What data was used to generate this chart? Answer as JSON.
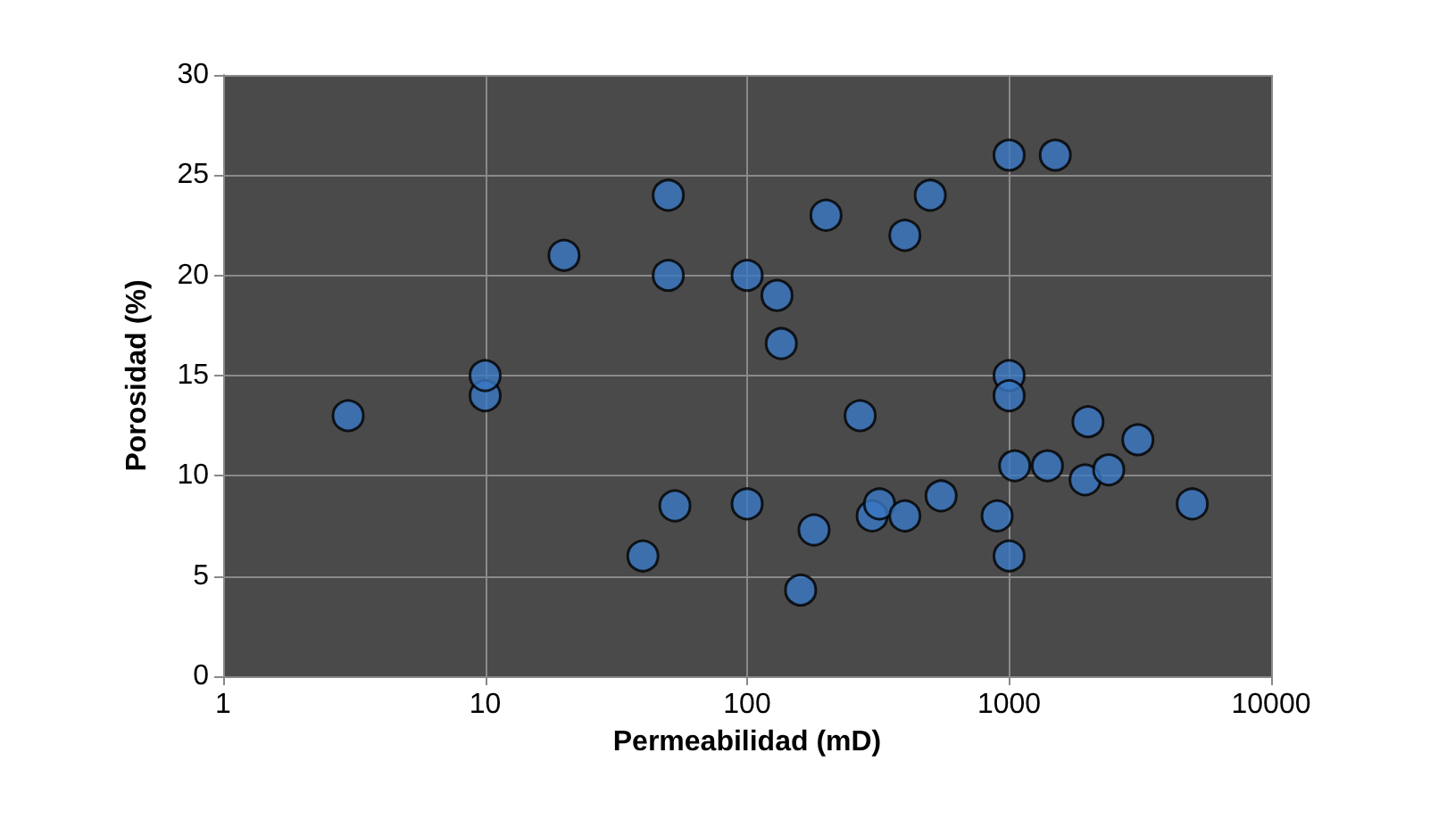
{
  "chart_data": {
    "type": "scatter",
    "xlabel": "Permeabilidad (mD)",
    "ylabel": "Porosidad (%)",
    "log": "x",
    "grid": true,
    "marker": "circle",
    "xlim": [
      1,
      10000
    ],
    "xticks": [
      1,
      10,
      100,
      1000,
      10000
    ],
    "ylim": [
      0,
      30
    ],
    "yticks": [
      0,
      5,
      10,
      15,
      20,
      25,
      30
    ],
    "series": [
      {
        "color": "#3a78c4",
        "x": [
          3,
          10,
          10,
          20,
          50,
          50,
          40,
          53,
          100,
          100,
          130,
          135,
          160,
          180,
          200,
          270,
          300,
          320,
          400,
          400,
          500,
          550,
          900,
          1000,
          1500,
          1000,
          1000,
          1000,
          1050,
          1400,
          2000,
          1950,
          2400,
          3100,
          5000
        ],
        "values": [
          13,
          14,
          15,
          21,
          24,
          20,
          6,
          8.5,
          20,
          8.6,
          19,
          16.6,
          4.3,
          7.3,
          23,
          13,
          8,
          8.6,
          22,
          8,
          24,
          9,
          8,
          26,
          26,
          15,
          14,
          6,
          10.5,
          10.5,
          12.7,
          9.8,
          10.3,
          11.8,
          8.6
        ]
      }
    ]
  }
}
